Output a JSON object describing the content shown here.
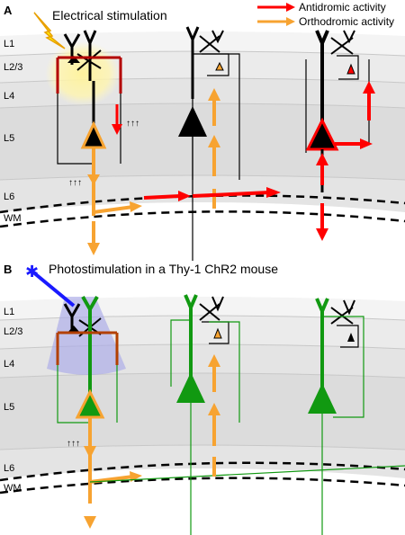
{
  "figure": {
    "panel_a": {
      "letter": "A",
      "caption": "Electrical stimulation",
      "legend": [
        {
          "text": "Antidromic activity",
          "color": "#ff0000"
        },
        {
          "text": "Orthodromic activity",
          "color": "#f7a331"
        }
      ],
      "layers": [
        "L1",
        "L2/3",
        "L4",
        "L5",
        "L6",
        "WM"
      ]
    },
    "panel_b": {
      "letter": "B",
      "caption": "Photostimulation in a Thy-1 ChR2 mouse",
      "layers": [
        "L1",
        "L2/3",
        "L4",
        "L5",
        "L6",
        "WM"
      ]
    },
    "colors": {
      "antidromic": "#ff0000",
      "orthodromic": "#f7a331",
      "chr2_neuron": "#119911",
      "stimulation_glow": "#fff3a0",
      "light_cone": "#a9a9e8",
      "light_source": "#1a1aff",
      "layer_band_dark": "#dedede",
      "layer_band_light": "#ededed"
    }
  }
}
